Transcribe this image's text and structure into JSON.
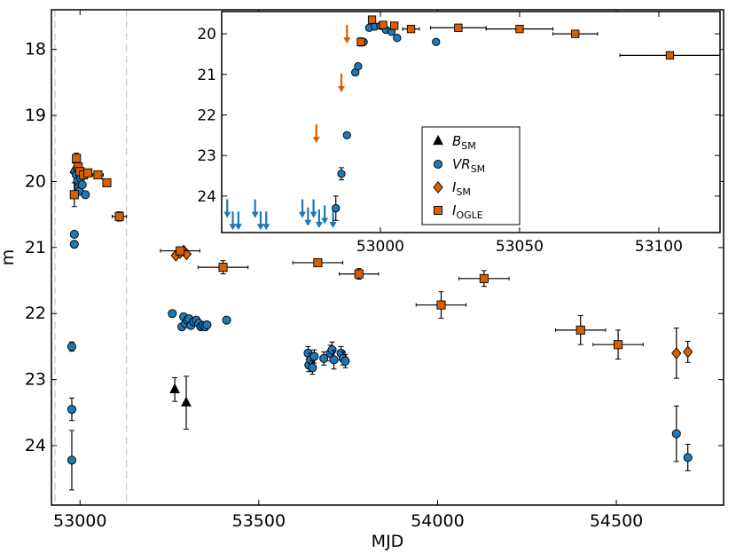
{
  "colors": {
    "blue": "#1f77b4",
    "orange": "#d95f02",
    "black": "#000000"
  },
  "chart_data": [
    {
      "type": "scatter",
      "xlabel": "MJD",
      "ylabel": "m",
      "xlim": [
        52920,
        54800
      ],
      "ylim": [
        24.9,
        17.4
      ],
      "y_inverted": true,
      "x_ticks": [
        "53000",
        "53500",
        "54000",
        "54500"
      ],
      "x_tick_values": [
        53000,
        53500,
        54000,
        54500
      ],
      "y_ticks": [
        "18",
        "19",
        "20",
        "21",
        "22",
        "23",
        "24"
      ],
      "y_tick_values": [
        18,
        19,
        20,
        21,
        22,
        23,
        24
      ],
      "vlines": [
        52930,
        53130
      ],
      "series": [
        {
          "name": "B_SM",
          "marker": "triangle",
          "color": "#000000",
          "points": [
            {
              "x": 53265,
              "y": 23.15,
              "yerr": 0.18
            },
            {
              "x": 53297,
              "y": 23.35,
              "yerr": 0.4
            },
            {
              "x": 52985,
              "y": 19.82,
              "yerr": 0.1
            }
          ]
        },
        {
          "name": "VR_SM",
          "marker": "circle",
          "color": "#1f77b4",
          "points": [
            {
              "x": 52977,
              "y": 22.5,
              "yerr": 0.07
            },
            {
              "x": 52977,
              "y": 23.45,
              "yerr": 0.17
            },
            {
              "x": 52977,
              "y": 24.22,
              "yerr": 0.45
            },
            {
              "x": 52984,
              "y": 20.8
            },
            {
              "x": 52984,
              "y": 20.95
            },
            {
              "x": 52986,
              "y": 19.85
            },
            {
              "x": 52990,
              "y": 19.9
            },
            {
              "x": 52993,
              "y": 20.0
            },
            {
              "x": 52995,
              "y": 20.1
            },
            {
              "x": 52998,
              "y": 20.15
            },
            {
              "x": 53002,
              "y": 19.95
            },
            {
              "x": 53006,
              "y": 20.05
            },
            {
              "x": 53015,
              "y": 20.2
            },
            {
              "x": 53258,
              "y": 22.0
            },
            {
              "x": 53285,
              "y": 22.2
            },
            {
              "x": 53290,
              "y": 22.05
            },
            {
              "x": 53295,
              "y": 22.15
            },
            {
              "x": 53300,
              "y": 22.1
            },
            {
              "x": 53305,
              "y": 22.08
            },
            {
              "x": 53310,
              "y": 22.18
            },
            {
              "x": 53318,
              "y": 22.12
            },
            {
              "x": 53325,
              "y": 22.1
            },
            {
              "x": 53332,
              "y": 22.15
            },
            {
              "x": 53338,
              "y": 22.2
            },
            {
              "x": 53344,
              "y": 22.18
            },
            {
              "x": 53350,
              "y": 22.2
            },
            {
              "x": 53355,
              "y": 22.17
            },
            {
              "x": 53410,
              "y": 22.1
            },
            {
              "x": 53638,
              "y": 22.6,
              "yerr": 0.1
            },
            {
              "x": 53640,
              "y": 22.78,
              "yerr": 0.1
            },
            {
              "x": 53645,
              "y": 22.7,
              "yerr": 0.1
            },
            {
              "x": 53650,
              "y": 22.82,
              "yerr": 0.1
            },
            {
              "x": 53655,
              "y": 22.65,
              "yerr": 0.1
            },
            {
              "x": 53682,
              "y": 22.68,
              "yerr": 0.1
            },
            {
              "x": 53700,
              "y": 22.6,
              "yerr": 0.12
            },
            {
              "x": 53705,
              "y": 22.55,
              "yerr": 0.12
            },
            {
              "x": 53710,
              "y": 22.7,
              "yerr": 0.14
            },
            {
              "x": 53730,
              "y": 22.6,
              "yerr": 0.1
            },
            {
              "x": 53736,
              "y": 22.68,
              "yerr": 0.1
            },
            {
              "x": 53742,
              "y": 22.72,
              "yerr": 0.1
            },
            {
              "x": 54668,
              "y": 23.82,
              "yerr": 0.42
            },
            {
              "x": 54700,
              "y": 24.18,
              "yerr": 0.2
            }
          ]
        },
        {
          "name": "I_SM",
          "marker": "diamond",
          "color": "#d95f02",
          "points": [
            {
              "x": 53268,
              "y": 21.12
            },
            {
              "x": 53280,
              "y": 21.08
            },
            {
              "x": 53290,
              "y": 21.05
            },
            {
              "x": 53298,
              "y": 21.1
            },
            {
              "x": 54668,
              "y": 22.6,
              "yerr": 0.38
            },
            {
              "x": 54700,
              "y": 22.58,
              "yerr": 0.16
            }
          ]
        },
        {
          "name": "I_OGLE",
          "marker": "square",
          "color": "#d95f02",
          "points": [
            {
              "x": 52984,
              "y": 20.2,
              "yerr": 0.18
            },
            {
              "x": 52990,
              "y": 19.65,
              "yerr": 0.08
            },
            {
              "x": 52995,
              "y": 19.78
            },
            {
              "x": 53000,
              "y": 19.85
            },
            {
              "x": 53010,
              "y": 19.9
            },
            {
              "x": 53022,
              "y": 19.87
            },
            {
              "x": 53050,
              "y": 19.9,
              "xerr": 15
            },
            {
              "x": 53075,
              "y": 20.02,
              "xerr": 8
            },
            {
              "x": 53110,
              "y": 20.53,
              "xerr": 20,
              "yerr": 0.07
            },
            {
              "x": 53280,
              "y": 21.05,
              "xerr": 55
            },
            {
              "x": 53400,
              "y": 21.3,
              "xerr": 70,
              "yerr": 0.1
            },
            {
              "x": 53665,
              "y": 21.23,
              "xerr": 70,
              "yerr": 0.06
            },
            {
              "x": 53780,
              "y": 21.4,
              "xerr": 55,
              "yerr": 0.08
            },
            {
              "x": 54010,
              "y": 21.87,
              "xerr": 70,
              "yerr": 0.2
            },
            {
              "x": 54130,
              "y": 21.47,
              "xerr": 70,
              "yerr": 0.12
            },
            {
              "x": 54400,
              "y": 22.25,
              "xerr": 70,
              "yerr": 0.22
            },
            {
              "x": 54505,
              "y": 22.47,
              "xerr": 70,
              "yerr": 0.22
            }
          ]
        }
      ]
    },
    {
      "type": "scatter",
      "role": "inset",
      "xlim": [
        52943,
        53122
      ],
      "ylim": [
        24.9,
        19.45
      ],
      "y_inverted": true,
      "x_ticks": [
        "53000",
        "53050",
        "53100"
      ],
      "x_tick_values": [
        53000,
        53050,
        53100
      ],
      "y_ticks": [
        "20",
        "21",
        "22",
        "23",
        "24"
      ],
      "y_tick_values": [
        20,
        21,
        22,
        23,
        24
      ],
      "upper_limits": [
        {
          "x": 52945,
          "y": 24.3,
          "color": "#1f77b4"
        },
        {
          "x": 52947,
          "y": 24.6,
          "color": "#1f77b4"
        },
        {
          "x": 52949,
          "y": 24.6,
          "color": "#1f77b4"
        },
        {
          "x": 52955,
          "y": 24.3,
          "color": "#1f77b4"
        },
        {
          "x": 52957,
          "y": 24.6,
          "color": "#1f77b4"
        },
        {
          "x": 52959,
          "y": 24.6,
          "color": "#1f77b4"
        },
        {
          "x": 52972,
          "y": 24.3,
          "color": "#1f77b4"
        },
        {
          "x": 52974,
          "y": 24.5,
          "color": "#1f77b4"
        },
        {
          "x": 52976,
          "y": 24.3,
          "color": "#1f77b4"
        },
        {
          "x": 52978,
          "y": 24.55,
          "color": "#1f77b4"
        },
        {
          "x": 52980,
          "y": 24.45,
          "color": "#1f77b4"
        },
        {
          "x": 52983,
          "y": 24.55,
          "color": "#1f77b4"
        },
        {
          "x": 52977,
          "y": 22.45,
          "color": "#d95f02"
        },
        {
          "x": 52986,
          "y": 21.2,
          "color": "#d95f02"
        },
        {
          "x": 52988,
          "y": 20.0,
          "color": "#d95f02"
        }
      ],
      "series": [
        {
          "name": "VR_SM",
          "marker": "circle",
          "color": "#1f77b4",
          "points": [
            {
              "x": 52984,
              "y": 24.3,
              "yerr": 0.3
            },
            {
              "x": 52986,
              "y": 23.45,
              "yerr": 0.15
            },
            {
              "x": 52988,
              "y": 22.5
            },
            {
              "x": 52991,
              "y": 20.95
            },
            {
              "x": 52992,
              "y": 20.8
            },
            {
              "x": 52994,
              "y": 20.2
            },
            {
              "x": 52996,
              "y": 19.85
            },
            {
              "x": 52998,
              "y": 19.82
            },
            {
              "x": 53000,
              "y": 19.8
            },
            {
              "x": 53002,
              "y": 19.9
            },
            {
              "x": 53004,
              "y": 19.95
            },
            {
              "x": 53006,
              "y": 20.1
            },
            {
              "x": 53020,
              "y": 20.2
            }
          ]
        },
        {
          "name": "I_OGLE",
          "marker": "square",
          "color": "#d95f02",
          "points": [
            {
              "x": 52993,
              "y": 20.2,
              "yerr": 0.1
            },
            {
              "x": 52997,
              "y": 19.65,
              "yerr": 0.07
            },
            {
              "x": 53001,
              "y": 19.78
            },
            {
              "x": 53005,
              "y": 19.8
            },
            {
              "x": 53011,
              "y": 19.88,
              "xerr": 3
            },
            {
              "x": 53028,
              "y": 19.85,
              "xerr": 10
            },
            {
              "x": 53050,
              "y": 19.88,
              "xerr": 12
            },
            {
              "x": 53070,
              "y": 20.0,
              "xerr": 8
            },
            {
              "x": 53104,
              "y": 20.53,
              "xerr": 18
            }
          ]
        }
      ]
    }
  ],
  "legend": {
    "placement": "inset-center",
    "entries": [
      {
        "marker": "triangle",
        "color": "#000000",
        "base": "B",
        "sub": "SM"
      },
      {
        "marker": "circle",
        "color": "#1f77b4",
        "base": "VR",
        "sub": "SM"
      },
      {
        "marker": "diamond",
        "color": "#d95f02",
        "base": "I",
        "sub": "SM"
      },
      {
        "marker": "square",
        "color": "#d95f02",
        "base": "I",
        "sub": "OGLE"
      }
    ]
  }
}
